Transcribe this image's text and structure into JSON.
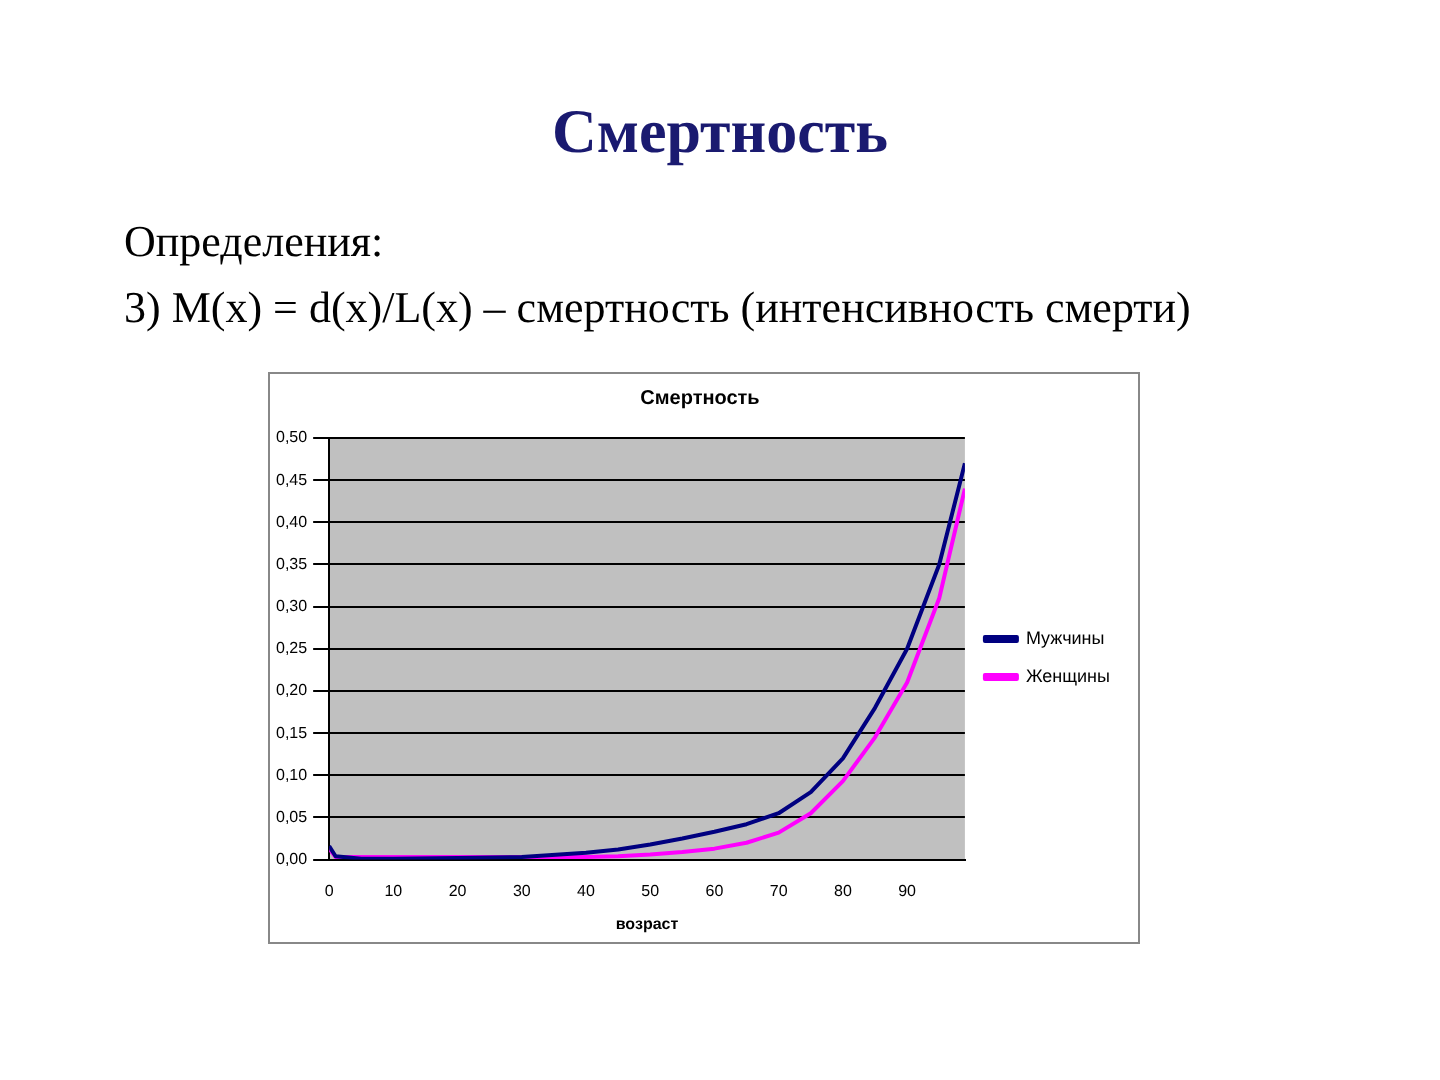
{
  "chart_data": {
    "type": "line",
    "title": "Смертность",
    "xlabel": "возраст",
    "annotations": [
      "Смертность",
      "Определения:",
      "3) M(x) = d(x)/L(x) – смертность (интенсивность смерти)"
    ],
    "x": [
      0,
      1,
      5,
      10,
      20,
      30,
      40,
      45,
      50,
      55,
      60,
      65,
      70,
      75,
      80,
      85,
      90,
      95,
      99
    ],
    "series": [
      {
        "name": "Мужчины",
        "color": "#000080",
        "values": [
          0.016,
          0.004,
          0.001,
          0.001,
          0.002,
          0.003,
          0.008,
          0.012,
          0.018,
          0.025,
          0.033,
          0.042,
          0.055,
          0.08,
          0.12,
          0.18,
          0.25,
          0.35,
          0.47
        ]
      },
      {
        "name": "Женщины",
        "color": "#ff00ff",
        "values": [
          0.013,
          0.003,
          null,
          null,
          null,
          null,
          0.003,
          0.004,
          0.006,
          0.009,
          0.013,
          0.02,
          0.032,
          0.055,
          0.093,
          0.145,
          0.21,
          0.31,
          0.44
        ]
      }
    ],
    "xlim": [
      0,
      99
    ],
    "xticks": [
      0,
      10,
      20,
      30,
      40,
      50,
      60,
      70,
      80,
      90
    ],
    "ylim": [
      0,
      0.5
    ],
    "yticks": [
      {
        "value": 0,
        "label": "0,00"
      },
      {
        "value": 0.05,
        "label": "0,05"
      },
      {
        "value": 0.1,
        "label": "0,10"
      },
      {
        "value": 0.15,
        "label": "0,15"
      },
      {
        "value": 0.2,
        "label": "0,20"
      },
      {
        "value": 0.25,
        "label": "0,25"
      },
      {
        "value": 0.3,
        "label": "0,30"
      },
      {
        "value": 0.35,
        "label": "0,35"
      },
      {
        "value": 0.4,
        "label": "0,40"
      },
      {
        "value": 0.45,
        "label": "0,45"
      },
      {
        "value": 0.5,
        "label": "0,50"
      }
    ],
    "grid": "y",
    "legend": "right",
    "marker": "none",
    "line_style": "solid"
  }
}
